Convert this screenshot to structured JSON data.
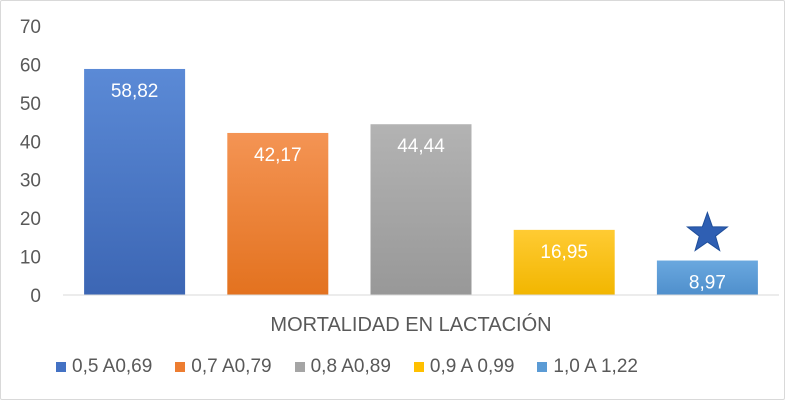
{
  "chart_data": {
    "type": "bar",
    "categories": [
      "0,5 A0,69",
      "0,7 A0,79",
      "0,8 A0,89",
      "0,9 A 0,99",
      "1,0 A 1,22"
    ],
    "values": [
      58.82,
      42.17,
      44.44,
      16.95,
      8.97
    ],
    "value_labels": [
      "58,82",
      "42,17",
      "44,44",
      "16,95",
      "8,97"
    ],
    "colors": [
      "#4472c4",
      "#ed7d31",
      "#a5a5a5",
      "#ffc000",
      "#5b9bd5"
    ],
    "xlabel": "MORTALIDAD EN LACTACIÓN",
    "ylabel": "",
    "ylim": [
      0,
      70
    ],
    "yticks": [
      0,
      10,
      20,
      30,
      40,
      50,
      60,
      70
    ],
    "grid": false,
    "legend": "bottom",
    "annotations": [
      {
        "type": "star-icon",
        "category": "1,0 A 1,22",
        "color": "#2f5fb3"
      }
    ]
  }
}
